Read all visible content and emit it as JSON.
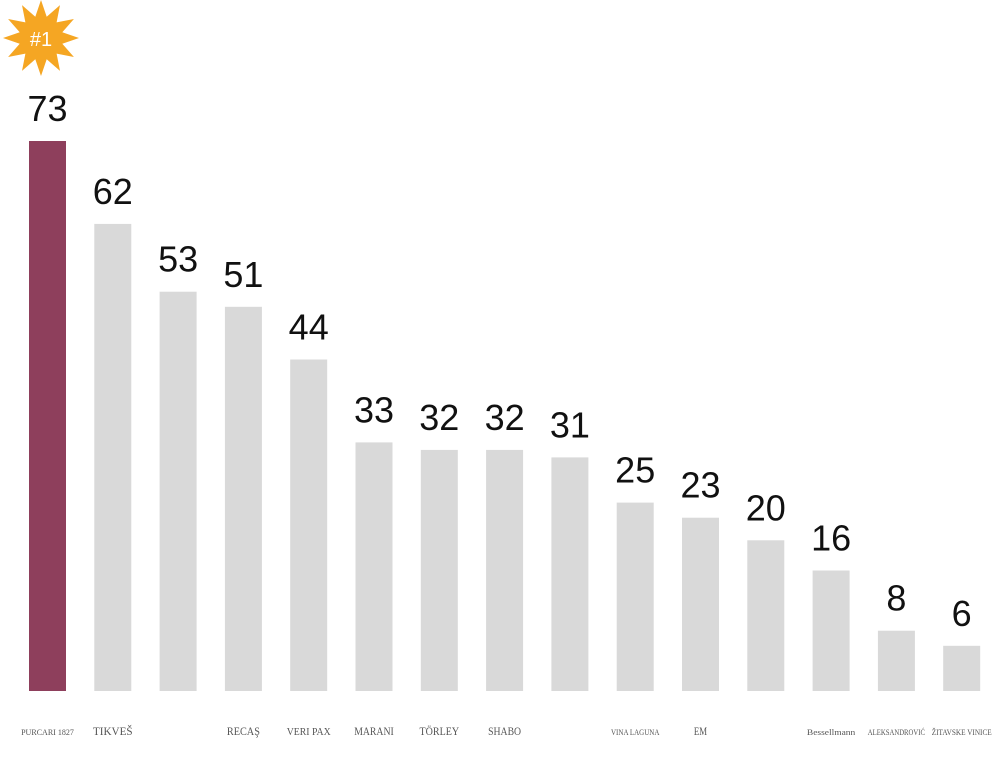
{
  "colors": {
    "highlight": "#8E3F5C",
    "bar": "#D9D9D9",
    "badge": "#F5A623",
    "text": "#111111"
  },
  "rank_badge": {
    "label": "#1"
  },
  "chart_data": {
    "type": "bar",
    "title": "",
    "xlabel": "",
    "ylabel": "",
    "ylim": [
      0,
      73
    ],
    "grid": false,
    "highlight_index": 0,
    "categories": [
      "PURCARI 1827",
      "TIKVEŠ",
      "",
      "RECAŞ",
      "VERI PAX",
      "MARANI",
      "TÖRLEY",
      "SHABO",
      "",
      "VINA LAGUNA",
      "EM",
      "",
      "Bessellmann",
      "ALEKSANDROVIĆ",
      "ŽITAVSKE VINICE"
    ],
    "values": [
      73,
      62,
      53,
      51,
      44,
      33,
      32,
      32,
      31,
      25,
      23,
      20,
      16,
      8,
      6
    ]
  }
}
